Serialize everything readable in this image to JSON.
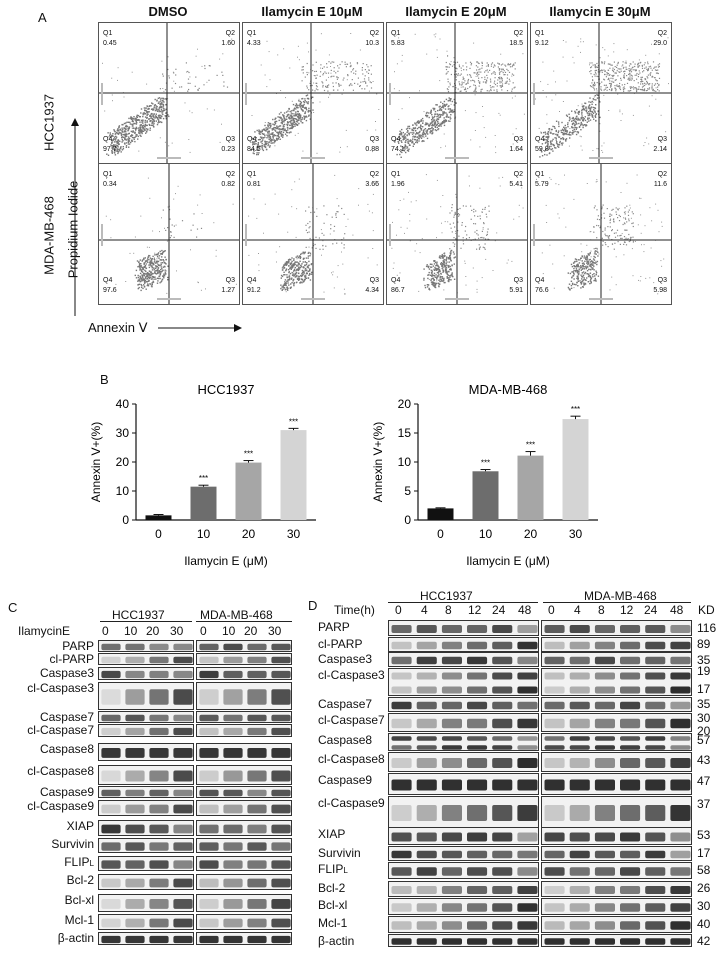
{
  "panelA": {
    "letter": "A",
    "conditions": [
      "DMSO",
      "Ilamycin E 10μM",
      "Ilamycin E 20μM",
      "Ilamycin E 30μM"
    ],
    "cell_lines": [
      "HCC1937",
      "MDA-MB-468"
    ],
    "y_axis_label": "Propidium Iodide",
    "x_axis_label": "Annexin Ⅴ",
    "quadrant_names": [
      "Q1",
      "Q2",
      "Q3",
      "Q4"
    ],
    "quadrants": [
      [
        {
          "Q1": "0.45",
          "Q2": "1.60",
          "Q3": "0.23",
          "Q4": "97.7"
        },
        {
          "Q1": "4.33",
          "Q2": "10.3",
          "Q3": "0.88",
          "Q4": "84.5"
        },
        {
          "Q1": "5.83",
          "Q2": "18.5",
          "Q3": "1.64",
          "Q4": "74.1"
        },
        {
          "Q1": "9.12",
          "Q2": "29.0",
          "Q3": "2.14",
          "Q4": "59.8"
        }
      ],
      [
        {
          "Q1": "0.34",
          "Q2": "0.82",
          "Q3": "1.27",
          "Q4": "97.6"
        },
        {
          "Q1": "0.81",
          "Q2": "3.66",
          "Q3": "4.34",
          "Q4": "91.2"
        },
        {
          "Q1": "1.96",
          "Q2": "5.41",
          "Q3": "5.91",
          "Q4": "86.7"
        },
        {
          "Q1": "5.79",
          "Q2": "11.6",
          "Q3": "5.98",
          "Q4": "76.6"
        }
      ]
    ]
  },
  "panelB": {
    "letter": "B"
  },
  "chart_data": [
    {
      "type": "bar",
      "title": "HCC1937",
      "categories": [
        "0",
        "10",
        "20",
        "30"
      ],
      "values": [
        1.6,
        11.5,
        19.8,
        31.0
      ],
      "errors": [
        0.3,
        0.5,
        0.7,
        0.6
      ],
      "significance": [
        "",
        "***",
        "***",
        "***"
      ],
      "bar_colors": [
        "#111111",
        "#6d6d6d",
        "#a6a6a6",
        "#d4d4d4"
      ],
      "xlabel": "Ilamycin E (μM)",
      "ylabel": "Annexin V+(%)",
      "ylim": [
        0,
        40
      ],
      "yticks": [
        0,
        10,
        20,
        30,
        40
      ]
    },
    {
      "type": "bar",
      "title": "MDA-MB-468",
      "categories": [
        "0",
        "10",
        "20",
        "30"
      ],
      "values": [
        2.0,
        8.4,
        11.1,
        17.4
      ],
      "errors": [
        0.1,
        0.3,
        0.7,
        0.5
      ],
      "significance": [
        "",
        "***",
        "***",
        "***"
      ],
      "bar_colors": [
        "#111111",
        "#6d6d6d",
        "#a6a6a6",
        "#d4d4d4"
      ],
      "xlabel": "Ilamycin E (μM)",
      "ylabel": "Annexin V+(%)",
      "ylim": [
        0,
        20
      ],
      "yticks": [
        0,
        5,
        10,
        15,
        20
      ]
    }
  ],
  "panelC": {
    "letter": "C",
    "treatment_label": "IlamycinE",
    "groups": [
      "HCC1937",
      "MDA-MB-468"
    ],
    "lanes": [
      "0",
      "10",
      "20",
      "30"
    ],
    "rows": [
      "PARP",
      "cl-PARP",
      "Caspase3",
      "cl-Caspase3",
      "Caspase7",
      "cl-Caspase7",
      "Caspase8",
      "cl-Caspase8",
      "Caspase9",
      "cl-Caspase9",
      "XIAP",
      "Survivin",
      "FLIPL",
      "Bcl-2",
      "Bcl-xl",
      "Mcl-1",
      "β-actin"
    ]
  },
  "panelD": {
    "letter": "D",
    "time_label": "Time(h)",
    "groups": [
      "HCC1937",
      "MDA-MB-468"
    ],
    "lanes": [
      "0",
      "4",
      "8",
      "12",
      "24",
      "48"
    ],
    "kd_label": "KD",
    "rows": [
      "PARP",
      "cl-PARP",
      "Caspase3",
      "cl-Caspase3",
      "Caspase7",
      "cl-Caspase7",
      "Caspase8",
      "cl-Caspase8",
      "Caspase9",
      "cl-Caspase9",
      "XIAP",
      "Survivin",
      "FLIPL",
      "Bcl-2",
      "Bcl-xl",
      "Mcl-1",
      "β-actin"
    ],
    "kd": [
      "116",
      "89",
      "35",
      "19",
      "17",
      "35",
      "30",
      "20",
      "57",
      "43",
      "47",
      "37",
      "53",
      "17",
      "58",
      "26",
      "30",
      "40",
      "42"
    ]
  }
}
